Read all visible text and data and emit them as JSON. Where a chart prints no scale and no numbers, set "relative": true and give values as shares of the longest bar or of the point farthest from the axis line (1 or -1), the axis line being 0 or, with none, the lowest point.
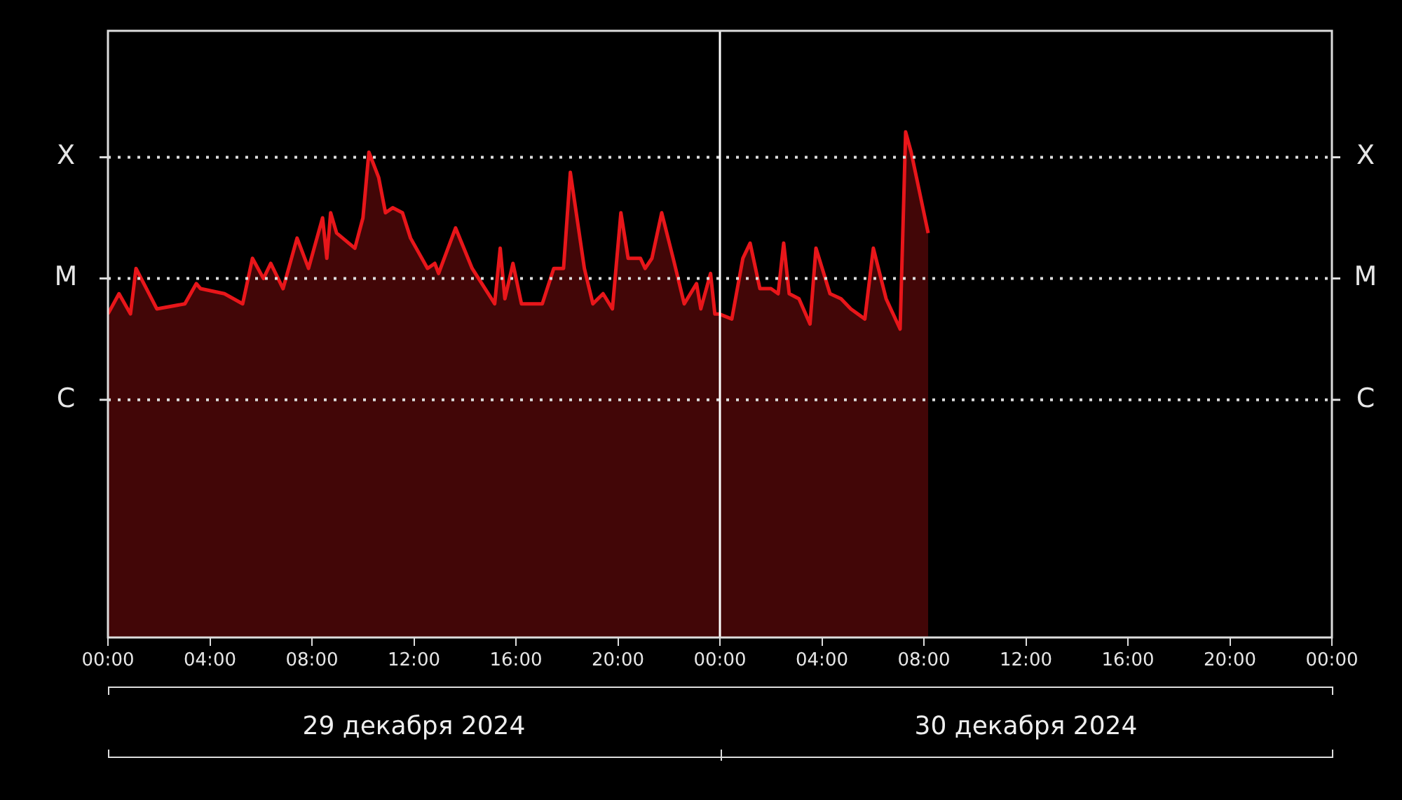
{
  "chart_data": {
    "type": "area",
    "relative": true,
    "x": [
      "2024-12-29T00:00",
      "2024-12-29T00:26",
      "2024-12-29T00:53",
      "2024-12-29T01:06",
      "2024-12-29T01:55",
      "2024-12-29T03:01",
      "2024-12-29T03:28",
      "2024-12-29T03:38",
      "2024-12-29T04:34",
      "2024-12-29T05:17",
      "2024-12-29T05:40",
      "2024-12-29T06:06",
      "2024-12-29T06:23",
      "2024-12-29T06:52",
      "2024-12-29T07:25",
      "2024-12-29T07:52",
      "2024-12-29T08:25",
      "2024-12-29T08:35",
      "2024-12-29T08:44",
      "2024-12-29T08:58",
      "2024-12-29T09:41",
      "2024-12-29T10:00",
      "2024-12-29T10:14",
      "2024-12-29T10:37",
      "2024-12-29T10:53",
      "2024-12-29T11:10",
      "2024-12-29T11:33",
      "2024-12-29T11:52",
      "2024-12-29T12:32",
      "2024-12-29T12:49",
      "2024-12-29T12:58",
      "2024-12-29T13:38",
      "2024-12-29T14:17",
      "2024-12-29T15:10",
      "2024-12-29T15:23",
      "2024-12-29T15:34",
      "2024-12-29T15:53",
      "2024-12-29T16:13",
      "2024-12-29T17:02",
      "2024-12-29T17:29",
      "2024-12-29T17:52",
      "2024-12-29T18:08",
      "2024-12-29T18:41",
      "2024-12-29T19:01",
      "2024-12-29T19:25",
      "2024-12-29T19:47",
      "2024-12-29T20:07",
      "2024-12-29T20:24",
      "2024-12-29T20:53",
      "2024-12-29T21:04",
      "2024-12-29T21:20",
      "2024-12-29T21:43",
      "2024-12-29T22:10",
      "2024-12-29T22:36",
      "2024-12-29T23:05",
      "2024-12-29T23:15",
      "2024-12-29T23:38",
      "2024-12-29T23:48",
      "2024-12-29T23:58",
      "2024-12-30T00:28",
      "2024-12-30T00:54",
      "2024-12-30T01:11",
      "2024-12-30T01:34",
      "2024-12-30T02:00",
      "2024-12-30T02:17",
      "2024-12-30T02:30",
      "2024-12-30T02:43",
      "2024-12-30T03:06",
      "2024-12-30T03:32",
      "2024-12-30T03:46",
      "2024-12-30T04:19",
      "2024-12-30T04:45",
      "2024-12-30T05:08",
      "2024-12-30T05:41",
      "2024-12-30T06:01",
      "2024-12-30T06:31",
      "2024-12-30T07:04",
      "2024-12-30T07:17",
      "2024-12-30T07:30",
      "2024-12-30T08:10"
    ],
    "series": [
      {
        "color": "#e8161a",
        "values": [
          0.64,
          0.68,
          0.64,
          0.73,
          0.65,
          0.66,
          0.7,
          0.69,
          0.68,
          0.66,
          0.75,
          0.71,
          0.74,
          0.69,
          0.79,
          0.73,
          0.83,
          0.75,
          0.84,
          0.8,
          0.77,
          0.83,
          0.96,
          0.91,
          0.84,
          0.85,
          0.84,
          0.79,
          0.73,
          0.74,
          0.72,
          0.81,
          0.73,
          0.66,
          0.77,
          0.67,
          0.74,
          0.66,
          0.66,
          0.73,
          0.73,
          0.92,
          0.73,
          0.66,
          0.68,
          0.65,
          0.84,
          0.75,
          0.75,
          0.73,
          0.75,
          0.84,
          0.75,
          0.66,
          0.7,
          0.65,
          0.72,
          0.64,
          0.64,
          0.63,
          0.75,
          0.78,
          0.69,
          0.69,
          0.68,
          0.78,
          0.68,
          0.67,
          0.62,
          0.77,
          0.68,
          0.67,
          0.65,
          0.63,
          0.77,
          0.67,
          0.61,
          1,
          0.96,
          0.8
        ]
      }
    ],
    "xlim": [
      "2024-12-29T00:00",
      "2024-12-31T00:00"
    ],
    "xticks": [
      {
        "value": "2024-12-29T00:00",
        "label": "00:00"
      },
      {
        "value": "2024-12-29T04:00",
        "label": "04:00"
      },
      {
        "value": "2024-12-29T08:00",
        "label": "08:00"
      },
      {
        "value": "2024-12-29T12:00",
        "label": "12:00"
      },
      {
        "value": "2024-12-29T16:00",
        "label": "16:00"
      },
      {
        "value": "2024-12-29T20:00",
        "label": "20:00"
      },
      {
        "value": "2024-12-30T00:00",
        "label": "00:00"
      },
      {
        "value": "2024-12-30T04:00",
        "label": "04:00"
      },
      {
        "value": "2024-12-30T08:00",
        "label": "08:00"
      },
      {
        "value": "2024-12-30T12:00",
        "label": "12:00"
      },
      {
        "value": "2024-12-30T16:00",
        "label": "16:00"
      },
      {
        "value": "2024-12-30T20:00",
        "label": "20:00"
      },
      {
        "value": "2024-12-31T00:00",
        "label": "00:00"
      }
    ],
    "marker": "none",
    "legend": false,
    "ref_lines": [
      {
        "axis": "y",
        "value": 0.47,
        "label": "C",
        "color": "#dddddd",
        "line_style": "dotted"
      },
      {
        "axis": "y",
        "value": 0.71,
        "label": "M",
        "color": "#dddddd",
        "line_style": "dotted"
      },
      {
        "axis": "y",
        "value": 0.95,
        "label": "X",
        "color": "#dddddd",
        "line_style": "dotted"
      },
      {
        "axis": "x",
        "value": "2024-12-30T00:00",
        "color": "#ffffff"
      }
    ],
    "annotations": [
      "29 декабря 2024",
      "30 декабря 2024"
    ]
  }
}
